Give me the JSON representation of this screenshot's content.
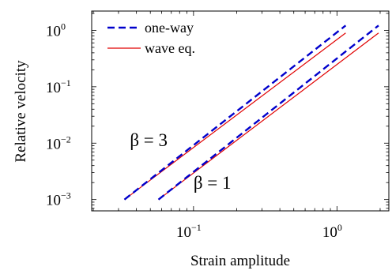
{
  "chart_data": {
    "type": "line",
    "title": "",
    "xlabel": "Strain amplitude",
    "ylabel": "Relative velocity",
    "xscale": "log",
    "yscale": "log",
    "xlim": [
      0.0195,
      2.3
    ],
    "ylim": [
      0.00063,
      2.2
    ],
    "grid": false,
    "legend_position": "top-left",
    "x_ticks": [
      {
        "value": 0.1,
        "base": "10",
        "exp": "−1"
      },
      {
        "value": 1,
        "base": "10",
        "exp": "0"
      }
    ],
    "y_ticks": [
      {
        "value": 0.001,
        "base": "10",
        "exp": "−3"
      },
      {
        "value": 0.01,
        "base": "10",
        "exp": "−2"
      },
      {
        "value": 0.1,
        "base": "10",
        "exp": "−1"
      },
      {
        "value": 1,
        "base": "10",
        "exp": "0"
      }
    ],
    "series": [
      {
        "name": "one-way",
        "color": "#0000cc",
        "dash": "dashed",
        "lines": [
          {
            "x": [
              0.033,
              1.15
            ],
            "y": [
              0.001,
              1.22
            ]
          },
          {
            "x": [
              0.057,
              1.95
            ],
            "y": [
              0.001,
              1.22
            ]
          }
        ]
      },
      {
        "name": "wave eq.",
        "color": "#e00000",
        "dash": "solid",
        "lines": [
          {
            "x": [
              0.033,
              1.15
            ],
            "y": [
              0.001,
              0.9
            ]
          },
          {
            "x": [
              0.057,
              1.95
            ],
            "y": [
              0.001,
              0.9
            ]
          }
        ]
      }
    ],
    "annotations": [
      {
        "text": "β = 3",
        "x": 0.036,
        "y": 0.0088
      },
      {
        "text": "β = 1",
        "x": 0.1,
        "y": 0.00155
      }
    ]
  }
}
